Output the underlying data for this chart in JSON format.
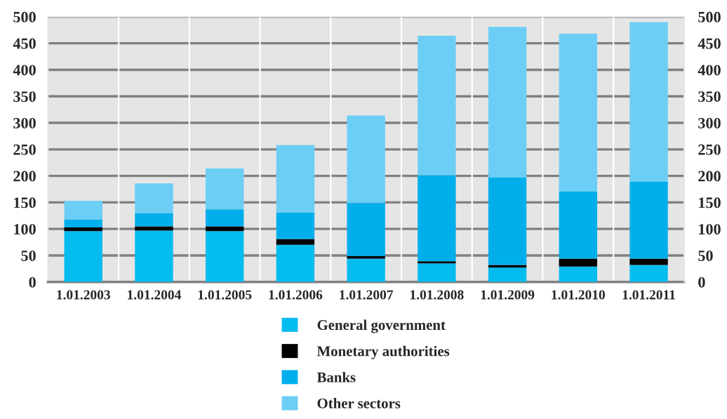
{
  "chart_data": {
    "type": "bar",
    "stacked": true,
    "categories": [
      "1.01.2003",
      "1.01.2004",
      "1.01.2005",
      "1.01.2006",
      "1.01.2007",
      "1.01.2008",
      "1.01.2009",
      "1.01.2010",
      "1.01.2011"
    ],
    "series": [
      {
        "name": "General government",
        "color": "#05bcef",
        "values": [
          96,
          97,
          96,
          70,
          44,
          35,
          27,
          29,
          32
        ]
      },
      {
        "name": "Monetary authorities",
        "color": "#000000",
        "values": [
          7,
          8,
          9,
          11,
          5,
          4,
          5,
          15,
          12
        ]
      },
      {
        "name": "Banks",
        "color": "#00aeeb",
        "values": [
          15,
          25,
          32,
          50,
          100,
          162,
          165,
          127,
          145
        ]
      },
      {
        "name": "Other sectors",
        "color": "#6ccef5",
        "values": [
          35,
          56,
          77,
          127,
          165,
          263,
          284,
          297,
          301
        ]
      }
    ],
    "ylim": [
      0,
      500
    ],
    "yticks": [
      0,
      50,
      100,
      150,
      200,
      250,
      300,
      350,
      400,
      450,
      500
    ],
    "y2lim": [
      0,
      500
    ],
    "y2ticks": [
      0,
      50,
      100,
      150,
      200,
      250,
      300,
      350,
      400,
      450,
      500
    ],
    "grid": true,
    "legend": "bottom"
  }
}
